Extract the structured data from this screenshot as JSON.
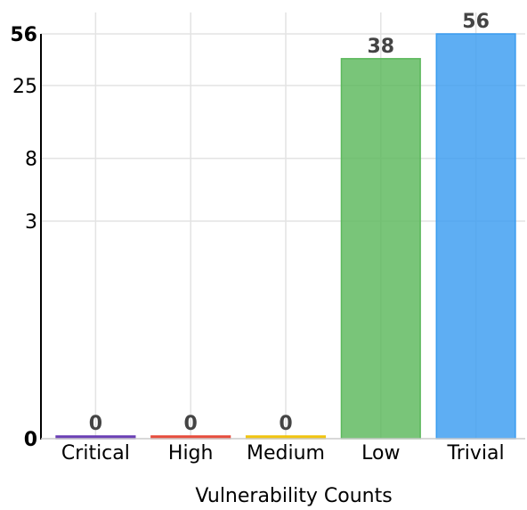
{
  "chart_data": {
    "type": "bar",
    "title": "",
    "xlabel": "Vulnerability Counts",
    "ylabel": "",
    "y_scale": "symlog",
    "ylim": [
      0,
      56
    ],
    "yticks": [
      0,
      3,
      8,
      25,
      56
    ],
    "yticks_bold": [
      0,
      56
    ],
    "grid": true,
    "categories": [
      "Critical",
      "High",
      "Medium",
      "Low",
      "Trivial"
    ],
    "values": [
      0,
      0,
      0,
      38,
      56
    ],
    "colors": [
      "#6a3fb5",
      "#e74c3c",
      "#f1c40f",
      "#5cb85c",
      "#3a9cf0"
    ],
    "data_labels": [
      "0",
      "0",
      "0",
      "38",
      "56"
    ]
  }
}
